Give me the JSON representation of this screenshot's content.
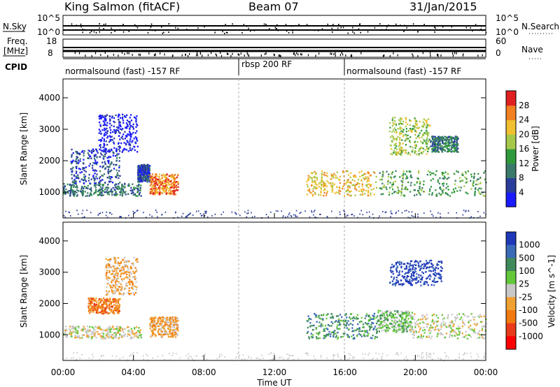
{
  "header": {
    "title": "King Salmon (fitACF)",
    "beam": "Beam 07",
    "date": "31/Jan/2015"
  },
  "strips": {
    "nsky_label": "N.Sky",
    "nsky_ticks": [
      "10^5",
      "10^0"
    ],
    "nsearch_label": "N.Search",
    "nsearch_ticks": [
      "10^5",
      "10^0"
    ],
    "freq_label_1": "Freq.",
    "freq_label_2": "[MHz]",
    "freq_ticks": [
      "18",
      "8"
    ],
    "nave_label": "Nave",
    "nave_ticks": [
      "60",
      "0"
    ],
    "cpid_label": "CPID",
    "cpid_segments": [
      {
        "label": "normalsound (fast) -157 RF",
        "start_h": 0,
        "end_h": 10
      },
      {
        "label": "rbsp 200 RF",
        "start_h": 10,
        "end_h": 16
      },
      {
        "label": "normalsound (fast) -157 RF",
        "start_h": 16,
        "end_h": 24
      }
    ]
  },
  "axes": {
    "y_label": "Slant Range [km]",
    "y_ticks": [
      "1000",
      "2000",
      "3000",
      "4000"
    ],
    "x_label": "Time UT",
    "x_ticks": [
      "00:00",
      "04:00",
      "08:00",
      "12:00",
      "16:00",
      "20:00",
      "00:00"
    ]
  },
  "colorbars": {
    "power": {
      "label": "Power [dB]",
      "ticks": [
        "4",
        "8",
        "12",
        "16",
        "20",
        "24",
        "28"
      ],
      "colors": [
        "#1a1aff",
        "#2a3d9a",
        "#3a7a6a",
        "#2f9a3c",
        "#a6c84a",
        "#f0c030",
        "#f08020",
        "#e02020"
      ]
    },
    "velocity": {
      "label": "Velocity [m s^-1]",
      "ticks": [
        "1000",
        "500",
        "100",
        "25",
        "-25",
        "-100",
        "-500",
        "-1000"
      ],
      "colors": [
        "#1f38b8",
        "#3a6ab8",
        "#3f8a5a",
        "#62c83a",
        "#c8c8c8",
        "#f0a030",
        "#f07a10",
        "#e83a1a",
        "#ff0000"
      ]
    }
  },
  "chart_data": [
    {
      "type": "heatmap",
      "title": "Power",
      "x_axis": "Time UT",
      "y_axis": "Slant Range [km]",
      "xlim_hours": [
        0,
        24
      ],
      "ylim_km": [
        180,
        4600
      ],
      "blobs": [
        {
          "h0": 0.0,
          "h1": 4.4,
          "r0": 900,
          "r1": 1300,
          "level": 2
        },
        {
          "h0": 0.4,
          "h1": 3.2,
          "r0": 1300,
          "r1": 2400,
          "level": 1
        },
        {
          "h0": 2.0,
          "h1": 4.2,
          "r0": 2300,
          "r1": 3500,
          "level": 0
        },
        {
          "h0": 4.2,
          "h1": 4.9,
          "r0": 1350,
          "r1": 1900,
          "level": 1
        },
        {
          "h0": 4.9,
          "h1": 6.5,
          "r0": 950,
          "r1": 1600,
          "level": 6
        },
        {
          "h0": 13.8,
          "h1": 17.8,
          "r0": 900,
          "r1": 1700,
          "level": 5
        },
        {
          "h0": 17.8,
          "h1": 24.0,
          "r0": 900,
          "r1": 1700,
          "level": 3
        },
        {
          "h0": 18.5,
          "h1": 20.8,
          "r0": 2200,
          "r1": 3400,
          "level": 4
        },
        {
          "h0": 20.8,
          "h1": 22.4,
          "r0": 2300,
          "r1": 2800,
          "level": 2
        }
      ]
    },
    {
      "type": "heatmap",
      "title": "Velocity",
      "x_axis": "Time UT",
      "y_axis": "Slant Range [km]",
      "xlim_hours": [
        0,
        24
      ],
      "ylim_km": [
        180,
        4600
      ],
      "blobs": [
        {
          "h0": 0.0,
          "h1": 4.4,
          "r0": 900,
          "r1": 1300,
          "level": 4
        },
        {
          "h0": 1.4,
          "h1": 3.2,
          "r0": 1700,
          "r1": 2200,
          "level": 6
        },
        {
          "h0": 2.4,
          "h1": 4.2,
          "r0": 2300,
          "r1": 3500,
          "level": 5
        },
        {
          "h0": 4.9,
          "h1": 6.5,
          "r0": 950,
          "r1": 1600,
          "level": 5
        },
        {
          "h0": 13.8,
          "h1": 17.8,
          "r0": 900,
          "r1": 1700,
          "level": 2
        },
        {
          "h0": 17.8,
          "h1": 19.8,
          "r0": 1100,
          "r1": 1800,
          "level": 3
        },
        {
          "h0": 19.6,
          "h1": 24.0,
          "r0": 900,
          "r1": 1700,
          "level": 4
        },
        {
          "h0": 18.5,
          "h1": 21.5,
          "r0": 2600,
          "r1": 3400,
          "level": 0
        }
      ]
    }
  ]
}
